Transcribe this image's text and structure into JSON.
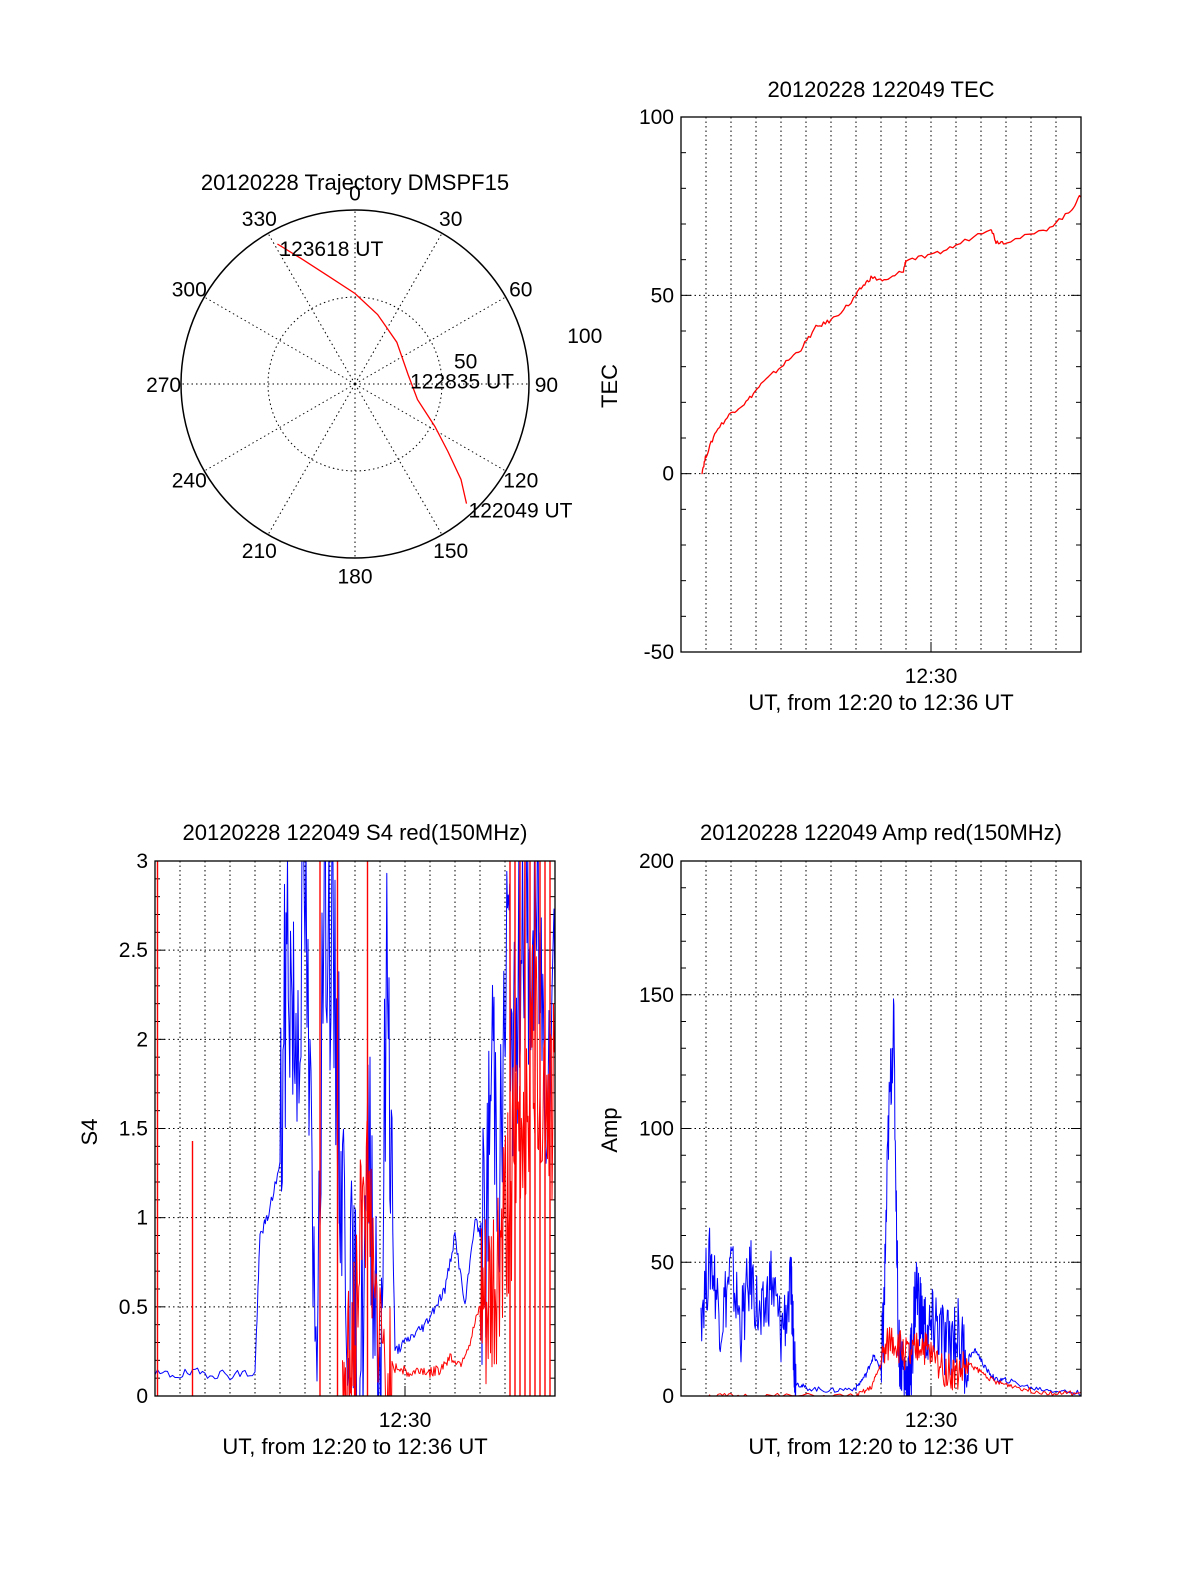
{
  "figure_date": "20120228",
  "colors": {
    "red": "#ff0000",
    "blue": "#0000ff",
    "black": "#000000"
  },
  "chart_data": [
    {
      "id": "trajectory",
      "type": "polar",
      "title": "20120228 Trajectory DMSPF15",
      "angle_labels": [
        "0",
        "30",
        "60",
        "90",
        "120",
        "150",
        "180",
        "210",
        "240",
        "270",
        "300",
        "330"
      ],
      "angle_values_deg": [
        0,
        30,
        60,
        90,
        120,
        150,
        180,
        210,
        240,
        270,
        300,
        330
      ],
      "radius_labels": [
        "50",
        "100"
      ],
      "radius_values": [
        50,
        100
      ],
      "radius_max": 100,
      "direction": "clockwise, 0 at top",
      "track": {
        "color": "red",
        "points": [
          {
            "az": 331,
            "r": 92
          },
          {
            "az": 337,
            "r": 78
          },
          {
            "az": 346,
            "r": 64
          },
          {
            "az": 0,
            "r": 52
          },
          {
            "az": 18,
            "r": 42
          },
          {
            "az": 45,
            "r": 34
          },
          {
            "az": 80,
            "r": 31
          },
          {
            "az": 104,
            "r": 37
          },
          {
            "az": 118,
            "r": 52
          },
          {
            "az": 126,
            "r": 66
          },
          {
            "az": 132,
            "r": 82
          },
          {
            "az": 137,
            "r": 94
          }
        ]
      },
      "annotations": [
        {
          "text": "123618 UT",
          "at_point": 0
        },
        {
          "text": "122835 UT",
          "at_point": 6
        },
        {
          "text": "122049 UT",
          "at_point": 11
        }
      ]
    },
    {
      "id": "tec",
      "type": "line",
      "title": "20120228 122049 TEC",
      "xlabel": "UT, from 12:20 to 12:36 UT",
      "ylabel": "TEC",
      "xlim_minutes": [
        20.0,
        36.0
      ],
      "xticks": [
        {
          "value": 30,
          "label": "12:30"
        }
      ],
      "ylim": [
        -50,
        100
      ],
      "yticks": [
        -50,
        0,
        50,
        100
      ],
      "grid": true,
      "series": [
        {
          "color": "red",
          "x_minutes": [
            20.82,
            21.0,
            21.4,
            22.0,
            22.6,
            23.2,
            24.0,
            24.8,
            25.4,
            26.0,
            26.8,
            27.2,
            27.6,
            28.2,
            28.9,
            29.0,
            30.0,
            31.0,
            32.4,
            32.6,
            33.0,
            34.5,
            35.5,
            36.0
          ],
          "y": [
            0,
            5,
            12,
            17,
            20,
            25,
            30,
            35,
            41,
            43,
            48,
            52,
            55,
            54,
            57,
            60,
            61,
            64,
            69,
            65,
            65,
            68,
            73,
            78
          ]
        }
      ]
    },
    {
      "id": "s4",
      "type": "line",
      "title": "20120228 122049 S4 red(150MHz)",
      "xlabel": "UT, from 12:20 to 12:36 UT",
      "ylabel": "S4",
      "xlim_minutes": [
        20.0,
        36.0
      ],
      "xticks": [
        {
          "value": 30,
          "label": "12:30"
        }
      ],
      "ylim": [
        0,
        3
      ],
      "yticks": [
        "0",
        "0.5",
        "1",
        "1.5",
        "2",
        "2.5",
        "3"
      ],
      "grid": true,
      "series": [
        {
          "color": "blue",
          "x_minutes": [
            20.0,
            21.0,
            22.0,
            23.0,
            24.0,
            24.2,
            24.5,
            25.0,
            25.3,
            25.6,
            26.0,
            26.4,
            26.8,
            27.2,
            27.5,
            27.9,
            28.2,
            28.6,
            29.0,
            29.3,
            29.6,
            30.0,
            30.4,
            30.8,
            31.2,
            31.6,
            32.0,
            32.4,
            32.8,
            33.2,
            33.5,
            33.8,
            34.1,
            34.4,
            34.7,
            35.0,
            35.3,
            35.6,
            36.0
          ],
          "y": [
            0.12,
            0.12,
            0.13,
            0.12,
            0.13,
            0.9,
            1.0,
            1.3,
            2.6,
            2.0,
            2.8,
            0.2,
            3.0,
            2.1,
            1.1,
            0.35,
            0.18,
            1.4,
            0.1,
            2.5,
            0.25,
            0.3,
            0.35,
            0.4,
            0.5,
            0.6,
            0.9,
            0.5,
            1.0,
            0.8,
            2.0,
            1.2,
            2.6,
            1.8,
            2.9,
            2.3,
            2.7,
            1.9,
            2.4
          ]
        },
        {
          "color": "red",
          "x_minutes": [
            27.5,
            27.8,
            28.0,
            28.3,
            28.6,
            29.0,
            29.4,
            29.8,
            30.2,
            30.6,
            31.0,
            31.4,
            31.8,
            32.2,
            32.6,
            33.0,
            33.3,
            33.6,
            33.9,
            34.2,
            34.5,
            34.8,
            35.1,
            35.4,
            35.7,
            36.0
          ],
          "y": [
            0.2,
            0.12,
            0.3,
            1.3,
            1.05,
            0.18,
            0.14,
            0.16,
            0.12,
            0.15,
            0.13,
            0.15,
            0.22,
            0.18,
            0.3,
            0.5,
            0.4,
            0.6,
            0.9,
            1.2,
            1.4,
            1.6,
            2.0,
            1.8,
            1.7,
            1.6
          ]
        }
      ],
      "red_spikes_minutes": [
        20.1,
        21.5,
        26.6,
        27.3,
        28.5,
        34.2,
        34.4,
        34.6,
        34.8,
        35.0,
        35.2,
        35.4,
        35.6,
        35.8
      ]
    },
    {
      "id": "amp",
      "type": "line",
      "title": "20120228 122049 Amp red(150MHz)",
      "xlabel": "UT, from 12:20 to 12:36 UT",
      "ylabel": "Amp",
      "xlim_minutes": [
        20.0,
        36.0
      ],
      "xticks": [
        {
          "value": 30,
          "label": "12:30"
        }
      ],
      "ylim": [
        0,
        200
      ],
      "yticks": [
        0,
        50,
        100,
        150,
        200
      ],
      "grid": true,
      "series": [
        {
          "color": "blue",
          "x_minutes": [
            20.8,
            21.2,
            21.6,
            22.0,
            22.4,
            22.8,
            23.2,
            23.6,
            24.0,
            24.4,
            24.5,
            24.6,
            25.0,
            26.0,
            27.0,
            27.4,
            27.7,
            28.0,
            28.1,
            28.3,
            28.5,
            28.7,
            28.9,
            29.1,
            29.2,
            29.4,
            29.6,
            29.9,
            30.2,
            30.6,
            31.0,
            31.4,
            31.8,
            32.2,
            32.6,
            33.0,
            34.0,
            35.0,
            36.0
          ],
          "y": [
            33,
            52,
            28,
            48,
            26,
            46,
            25,
            44,
            24,
            40,
            22,
            5,
            3,
            2,
            3,
            8,
            15,
            10,
            25,
            100,
            140,
            20,
            8,
            5,
            12,
            42,
            30,
            22,
            28,
            18,
            25,
            14,
            17,
            10,
            6,
            6,
            3,
            2,
            1
          ]
        },
        {
          "color": "red",
          "x_minutes": [
            20.8,
            22.0,
            24.0,
            27.0,
            27.6,
            28.0,
            28.4,
            28.8,
            29.2,
            29.6,
            30.0,
            30.6,
            31.0,
            31.5,
            32.0,
            32.6,
            33.2,
            34.0,
            35.0,
            36.0
          ],
          "y": [
            0,
            0,
            0,
            0,
            3,
            12,
            22,
            18,
            14,
            20,
            15,
            10,
            8,
            12,
            9,
            5,
            4,
            2,
            1,
            1
          ]
        }
      ]
    }
  ]
}
